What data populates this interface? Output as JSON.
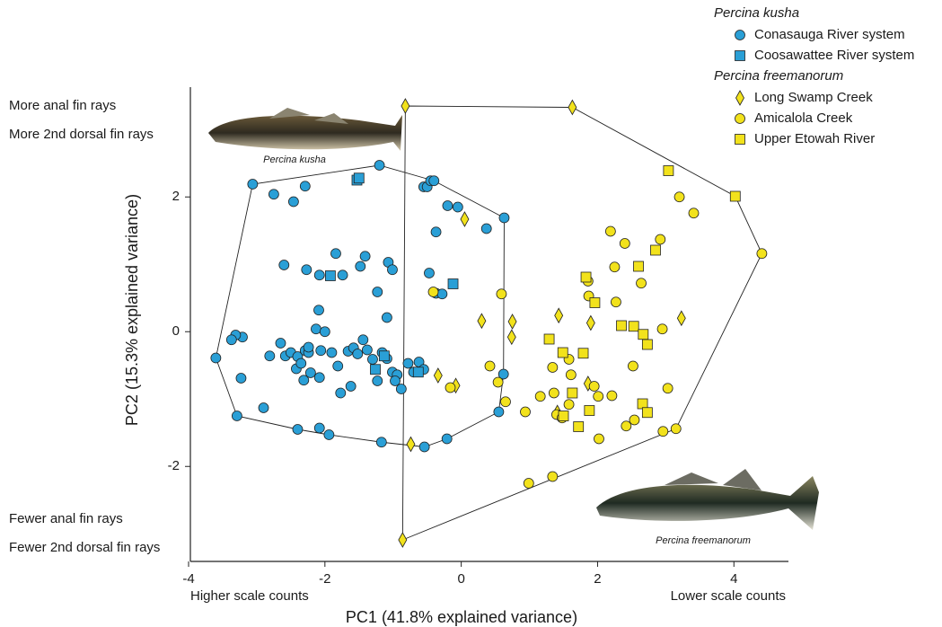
{
  "chart_data": {
    "type": "scatter",
    "x_label": "PC1 (41.8% explained variance)",
    "y_label": "PC2 (15.3% explained variance)",
    "xlim": [
      -4,
      4.8
    ],
    "ylim": [
      -3.41,
      3.63
    ],
    "xticks": [
      -4,
      -2,
      0,
      2,
      4
    ],
    "yticks": [
      -2,
      0,
      2
    ],
    "y_annotations_top": [
      "More anal fin rays",
      "More 2nd dorsal fin rays"
    ],
    "y_annotations_bottom": [
      "Fewer anal fin rays",
      "Fewer 2nd dorsal fin rays"
    ],
    "x_annotation_left": "Higher scale counts",
    "x_annotation_right": "Lower scale counts",
    "image_captions": [
      "Percina kusha",
      "Percina freemanorum"
    ],
    "hulls": true,
    "groups": [
      {
        "name": "Percina kusha",
        "series": [
          {
            "name": "Conasauga River system",
            "marker": "circle",
            "color": "#2a9fd6",
            "x": [
              -3.06,
              -2.75,
              -2.46,
              -2.29,
              -1.2,
              -0.55,
              -0.5,
              -0.45,
              -0.4,
              -0.2,
              -0.05,
              0.37,
              0.63,
              -0.37,
              -2.6,
              -2.27,
              -2.08,
              -1.74,
              -1.84,
              -1.41,
              -1.48,
              -1.07,
              -1.01,
              -1.23,
              -1.09,
              -2.09,
              -0.47,
              -0.37,
              -0.28,
              -3.21,
              -3.31,
              -3.37,
              -3.6,
              -3.23,
              -2.81,
              -2.65,
              -2.58,
              -2.5,
              -2.4,
              -2.42,
              -2.29,
              -2.24,
              -2.13,
              -2.24,
              -2.35,
              -2.06,
              -2.0,
              -1.9,
              -1.81,
              -1.66,
              -1.58,
              -1.52,
              -1.44,
              -1.38,
              -1.3,
              -1.16,
              -1.09,
              -1.01,
              -0.94,
              -0.88,
              -0.78,
              -0.7,
              -0.62,
              -0.55,
              -2.31,
              -2.21,
              -2.08,
              -1.77,
              -1.62,
              -1.23,
              -0.97,
              -2.9,
              -3.29,
              -2.4,
              -2.08,
              -1.94,
              -1.17,
              -0.54,
              -0.21,
              0.62,
              0.55
            ],
            "y": [
              2.19,
              2.04,
              1.93,
              2.16,
              2.47,
              2.15,
              2.15,
              2.24,
              2.24,
              1.87,
              1.85,
              1.53,
              1.69,
              1.48,
              0.99,
              0.92,
              0.84,
              0.84,
              1.16,
              1.12,
              0.97,
              1.03,
              0.92,
              0.59,
              0.21,
              0.32,
              0.87,
              0.57,
              0.56,
              -0.08,
              -0.05,
              -0.12,
              -0.39,
              -0.69,
              -0.36,
              -0.17,
              -0.36,
              -0.31,
              -0.37,
              -0.55,
              -0.28,
              -0.31,
              0.04,
              -0.23,
              -0.47,
              -0.28,
              0.0,
              -0.31,
              -0.51,
              -0.29,
              -0.24,
              -0.33,
              -0.12,
              -0.27,
              -0.41,
              -0.31,
              -0.4,
              -0.6,
              -0.64,
              -0.85,
              -0.47,
              -0.6,
              -0.45,
              -0.56,
              -0.72,
              -0.61,
              -0.68,
              -0.91,
              -0.81,
              -0.73,
              -0.73,
              -1.13,
              -1.25,
              -1.45,
              -1.43,
              -1.53,
              -1.64,
              -1.71,
              -1.59,
              -0.63,
              -1.19
            ]
          },
          {
            "name": "Coosawattee River system",
            "marker": "square",
            "color": "#2a9fd6",
            "x": [
              -1.53,
              -1.5,
              -1.92,
              -0.12,
              -1.13,
              -1.26,
              -0.63
            ],
            "y": [
              2.25,
              2.28,
              0.83,
              0.71,
              -0.36,
              -0.56,
              -0.6
            ]
          }
        ]
      },
      {
        "name": "Percina freemanorum",
        "series": [
          {
            "name": "Long Swamp Creek",
            "marker": "diamond",
            "color": "#f2e21c",
            "x": [
              -0.82,
              1.63,
              0.05,
              0.3,
              0.75,
              0.74,
              1.43,
              1.9,
              3.23,
              -0.34,
              -0.08,
              -0.74,
              -0.86,
              1.41,
              1.86
            ],
            "y": [
              3.35,
              3.33,
              1.67,
              0.16,
              0.15,
              -0.08,
              0.24,
              0.13,
              0.2,
              -0.65,
              -0.8,
              -1.67,
              -3.09,
              -1.2,
              -0.77
            ]
          },
          {
            "name": "Amicalola Creek",
            "marker": "circle",
            "color": "#f2e21c",
            "x": [
              3.2,
              3.41,
              2.19,
              2.4,
              2.92,
              2.25,
              2.64,
              1.86,
              1.87,
              2.27,
              0.59,
              -0.41,
              0.42,
              0.54,
              -0.16,
              0.65,
              1.16,
              0.94,
              1.34,
              1.58,
              1.61,
              1.36,
              1.4,
              1.48,
              1.58,
              1.95,
              2.01,
              2.21,
              2.52,
              2.54,
              2.95,
              3.03,
              2.96,
              3.15,
              2.02,
              2.42,
              1.34,
              0.99,
              4.41
            ],
            "y": [
              2.0,
              1.76,
              1.49,
              1.31,
              1.37,
              0.96,
              0.72,
              0.75,
              0.53,
              0.44,
              0.56,
              0.59,
              -0.51,
              -0.75,
              -0.83,
              -1.04,
              -0.96,
              -1.19,
              -0.53,
              -0.41,
              -0.64,
              -0.91,
              -1.23,
              -1.28,
              -1.08,
              -0.81,
              -0.96,
              -0.95,
              -0.51,
              -1.31,
              0.04,
              -0.84,
              -1.48,
              -1.44,
              -1.59,
              -1.4,
              -2.15,
              -2.25,
              1.16
            ]
          },
          {
            "name": "Upper Etowah River",
            "marker": "square",
            "color": "#f2e21c",
            "x": [
              3.04,
              4.02,
              2.85,
              2.6,
              1.83,
              1.96,
              2.35,
              2.53,
              2.67,
              2.73,
              1.29,
              1.49,
              1.79,
              1.63,
              1.5,
              1.88,
              1.72,
              2.66,
              2.73
            ],
            "y": [
              2.39,
              2.01,
              1.21,
              0.97,
              0.81,
              0.43,
              0.09,
              0.08,
              -0.04,
              -0.19,
              -0.11,
              -0.31,
              -0.32,
              -0.91,
              -1.25,
              -1.17,
              -1.41,
              -1.07,
              -1.2
            ]
          }
        ]
      }
    ]
  }
}
